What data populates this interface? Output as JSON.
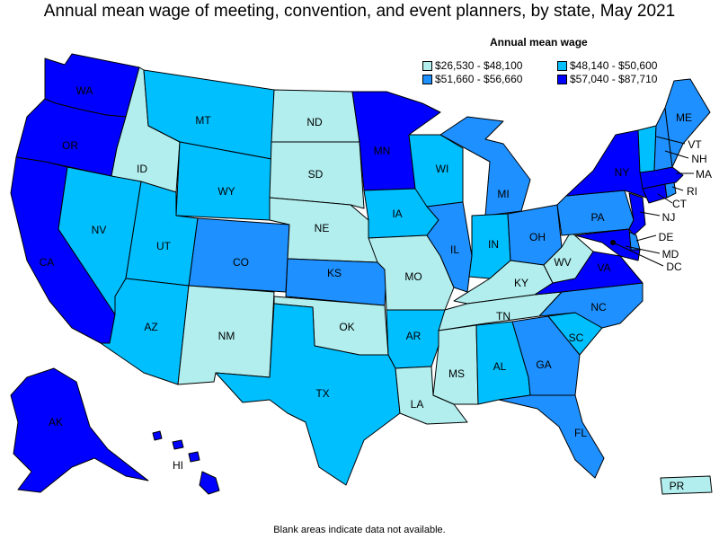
{
  "title": "Annual mean wage of meeting, convention, and event planners, by state, May 2021",
  "legend": {
    "title": "Annual mean wage",
    "items": [
      {
        "label": "$26,530 - $48,100",
        "color": "#b2eeee"
      },
      {
        "label": "$48,140 - $50,600",
        "color": "#00bfff"
      },
      {
        "label": "$51,660 - $56,660",
        "color": "#1e90ff"
      },
      {
        "label": "$57,040 - $87,710",
        "color": "#0000ff"
      }
    ]
  },
  "footnote": "Blank areas indicate data not available.",
  "colors": {
    "c1": "#b2eeee",
    "c2": "#00bfff",
    "c3": "#1e90ff",
    "c4": "#0000ff"
  },
  "states": {
    "WA": {
      "label": "WA",
      "class": 4
    },
    "OR": {
      "label": "OR",
      "class": 4
    },
    "CA": {
      "label": "CA",
      "class": 4
    },
    "ID": {
      "label": "ID",
      "class": 1
    },
    "NV": {
      "label": "NV",
      "class": 2
    },
    "MT": {
      "label": "MT",
      "class": 2
    },
    "WY": {
      "label": "WY",
      "class": 2
    },
    "UT": {
      "label": "UT",
      "class": 2
    },
    "AZ": {
      "label": "AZ",
      "class": 2
    },
    "CO": {
      "label": "CO",
      "class": 3
    },
    "NM": {
      "label": "NM",
      "class": 1
    },
    "ND": {
      "label": "ND",
      "class": 1
    },
    "SD": {
      "label": "SD",
      "class": 1
    },
    "NE": {
      "label": "NE",
      "class": 1
    },
    "KS": {
      "label": "KS",
      "class": 3
    },
    "OK": {
      "label": "OK",
      "class": 1
    },
    "TX": {
      "label": "TX",
      "class": 2
    },
    "MN": {
      "label": "MN",
      "class": 4
    },
    "IA": {
      "label": "IA",
      "class": 2
    },
    "MO": {
      "label": "MO",
      "class": 1
    },
    "AR": {
      "label": "AR",
      "class": 2
    },
    "LA": {
      "label": "LA",
      "class": 1
    },
    "WI": {
      "label": "WI",
      "class": 2
    },
    "IL": {
      "label": "IL",
      "class": 3
    },
    "MI": {
      "label": "MI",
      "class": 3
    },
    "IN": {
      "label": "IN",
      "class": 2
    },
    "OH": {
      "label": "OH",
      "class": 3
    },
    "KY": {
      "label": "KY",
      "class": 1
    },
    "TN": {
      "label": "TN",
      "class": 1
    },
    "MS": {
      "label": "MS",
      "class": 1
    },
    "AL": {
      "label": "AL",
      "class": 2
    },
    "GA": {
      "label": "GA",
      "class": 3
    },
    "FL": {
      "label": "FL",
      "class": 3
    },
    "SC": {
      "label": "SC",
      "class": 2
    },
    "NC": {
      "label": "NC",
      "class": 3
    },
    "VA": {
      "label": "VA",
      "class": 4
    },
    "WV": {
      "label": "WV",
      "class": 1
    },
    "PA": {
      "label": "PA",
      "class": 3
    },
    "NY": {
      "label": "NY",
      "class": 4
    },
    "VT": {
      "label": "VT",
      "class": 2
    },
    "NH": {
      "label": "NH",
      "class": 3
    },
    "ME": {
      "label": "ME",
      "class": 3
    },
    "MA": {
      "label": "MA",
      "class": 4
    },
    "RI": {
      "label": "RI",
      "class": 3
    },
    "CT": {
      "label": "CT",
      "class": 4
    },
    "NJ": {
      "label": "NJ",
      "class": 4
    },
    "DE": {
      "label": "DE",
      "class": 3
    },
    "MD": {
      "label": "MD",
      "class": 4
    },
    "DC": {
      "label": "DC",
      "class": 4
    },
    "AK": {
      "label": "AK",
      "class": 4
    },
    "HI": {
      "label": "HI",
      "class": 4
    },
    "PR": {
      "label": "PR",
      "class": 1
    }
  }
}
